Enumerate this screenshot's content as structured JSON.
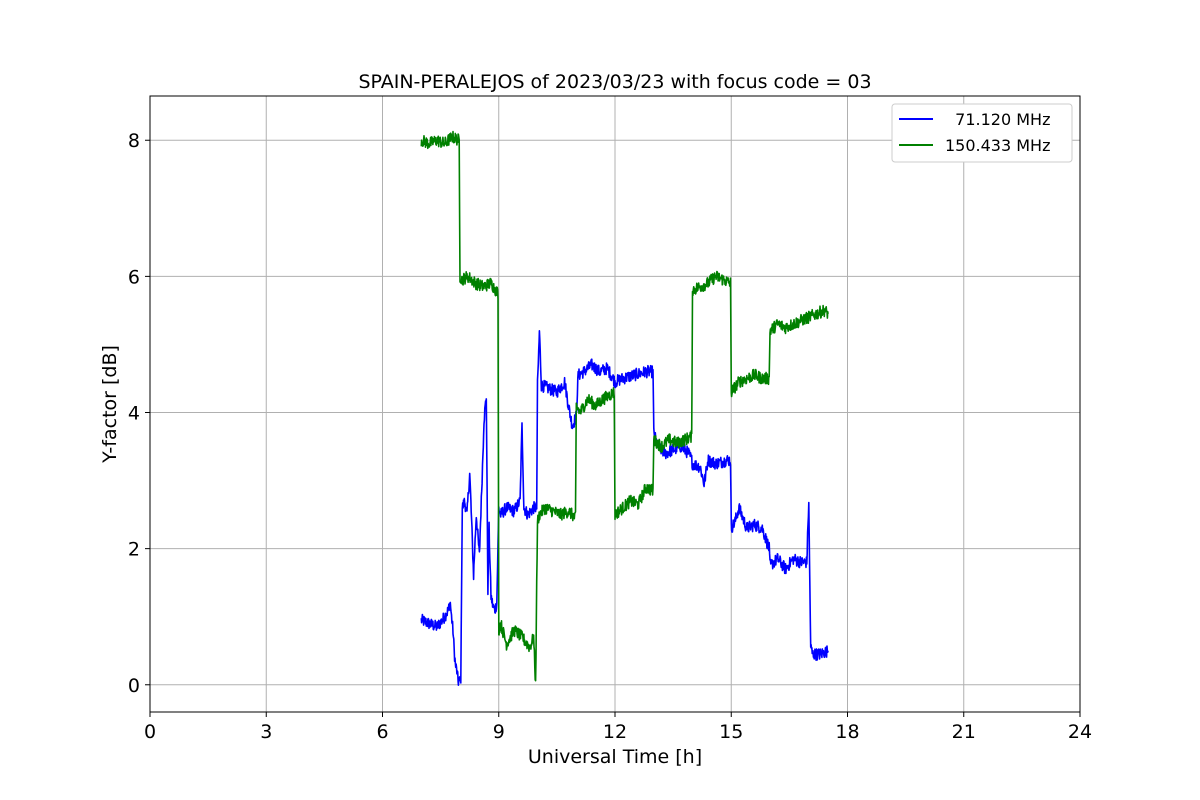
{
  "chart_data": {
    "type": "line",
    "title": "SPAIN-PERALEJOS of 2023/03/23 with focus code = 03",
    "xlabel": "Universal Time [h]",
    "ylabel": "Y-factor [dB]",
    "xlim": [
      0,
      24
    ],
    "ylim": [
      -0.4,
      8.65
    ],
    "xticks": [
      0,
      3,
      6,
      9,
      12,
      15,
      18,
      21,
      24
    ],
    "yticks": [
      0,
      2,
      4,
      6,
      8
    ],
    "grid": true,
    "legend_position": "top-right",
    "series": [
      {
        "name": "  71.120 MHz",
        "color": "#0000ff",
        "x": [
          7.0,
          7.2,
          7.4,
          7.55,
          7.7,
          7.75,
          7.78,
          7.82,
          7.85,
          7.88,
          7.92,
          7.95,
          8.0,
          8.02,
          8.06,
          8.12,
          8.18,
          8.25,
          8.3,
          8.35,
          8.42,
          8.5,
          8.55,
          8.62,
          8.68,
          8.72,
          8.75,
          8.8,
          8.85,
          8.9,
          8.95,
          9.0,
          9.05,
          9.2,
          9.4,
          9.55,
          9.6,
          9.65,
          9.75,
          9.9,
          9.98,
          10.0,
          10.05,
          10.1,
          10.3,
          10.5,
          10.7,
          10.8,
          10.9,
          11.0,
          11.05,
          11.2,
          11.4,
          11.6,
          11.8,
          12.0,
          12.2,
          12.5,
          12.8,
          12.98,
          13.0,
          13.1,
          13.3,
          13.5,
          13.7,
          13.9,
          13.98,
          14.0,
          14.2,
          14.3,
          14.4,
          14.6,
          14.9,
          14.98,
          15.0,
          15.1,
          15.2,
          15.4,
          15.6,
          15.8,
          15.98,
          16.0,
          16.2,
          16.4,
          16.6,
          16.8,
          16.95,
          17.0,
          17.05,
          17.1,
          17.3,
          17.5
        ],
        "y": [
          0.95,
          0.9,
          0.85,
          0.95,
          1.1,
          1.2,
          1.0,
          0.8,
          0.5,
          0.3,
          0.2,
          0.05,
          0.05,
          0.1,
          2.6,
          2.7,
          2.5,
          3.1,
          2.4,
          1.6,
          2.5,
          1.9,
          2.7,
          3.9,
          4.25,
          1.4,
          2.3,
          1.3,
          1.15,
          1.1,
          1.2,
          2.6,
          2.5,
          2.6,
          2.55,
          2.7,
          3.8,
          2.6,
          2.5,
          2.6,
          2.6,
          4.4,
          5.2,
          4.4,
          4.35,
          4.3,
          4.45,
          4.1,
          3.8,
          3.95,
          4.55,
          4.6,
          4.7,
          4.6,
          4.65,
          4.45,
          4.5,
          4.55,
          4.6,
          4.6,
          3.7,
          3.5,
          3.4,
          3.45,
          3.5,
          3.4,
          3.3,
          3.25,
          3.2,
          2.95,
          3.3,
          3.25,
          3.3,
          3.3,
          2.3,
          2.4,
          2.6,
          2.3,
          2.35,
          2.3,
          2.0,
          1.75,
          1.85,
          1.7,
          1.85,
          1.8,
          1.8,
          2.7,
          0.55,
          0.45,
          0.45,
          0.5
        ]
      },
      {
        "name": "150.433 MHz",
        "color": "#008000",
        "x": [
          7.0,
          7.2,
          7.4,
          7.6,
          7.8,
          7.98,
          8.0,
          8.05,
          8.2,
          8.4,
          8.6,
          8.8,
          8.98,
          9.0,
          9.05,
          9.2,
          9.4,
          9.6,
          9.8,
          9.9,
          9.95,
          10.0,
          10.05,
          10.2,
          10.4,
          10.6,
          10.8,
          10.98,
          11.0,
          11.1,
          11.3,
          11.5,
          11.7,
          11.98,
          12.0,
          12.2,
          12.4,
          12.6,
          12.8,
          12.98,
          13.0,
          13.2,
          13.4,
          13.6,
          13.8,
          13.98,
          14.0,
          14.2,
          14.4,
          14.6,
          14.8,
          14.98,
          15.0,
          15.2,
          15.4,
          15.6,
          15.8,
          15.98,
          16.0,
          16.2,
          16.4,
          16.6,
          16.8,
          17.0,
          17.2,
          17.4,
          17.5
        ],
        "y": [
          8.0,
          7.95,
          8.0,
          7.95,
          8.05,
          8.0,
          6.0,
          5.95,
          6.0,
          5.9,
          5.85,
          5.9,
          5.75,
          0.8,
          0.9,
          0.6,
          0.8,
          0.7,
          0.55,
          0.7,
          0.0,
          2.4,
          2.5,
          2.6,
          2.55,
          2.5,
          2.55,
          2.45,
          4.1,
          4.0,
          4.2,
          4.1,
          4.2,
          4.3,
          2.5,
          2.6,
          2.7,
          2.65,
          2.9,
          2.85,
          3.6,
          3.5,
          3.6,
          3.55,
          3.6,
          3.65,
          5.8,
          5.85,
          5.9,
          6.0,
          5.95,
          5.9,
          4.3,
          4.45,
          4.5,
          4.55,
          4.5,
          4.5,
          5.2,
          5.3,
          5.25,
          5.3,
          5.35,
          5.4,
          5.45,
          5.5,
          5.45
        ]
      }
    ]
  }
}
